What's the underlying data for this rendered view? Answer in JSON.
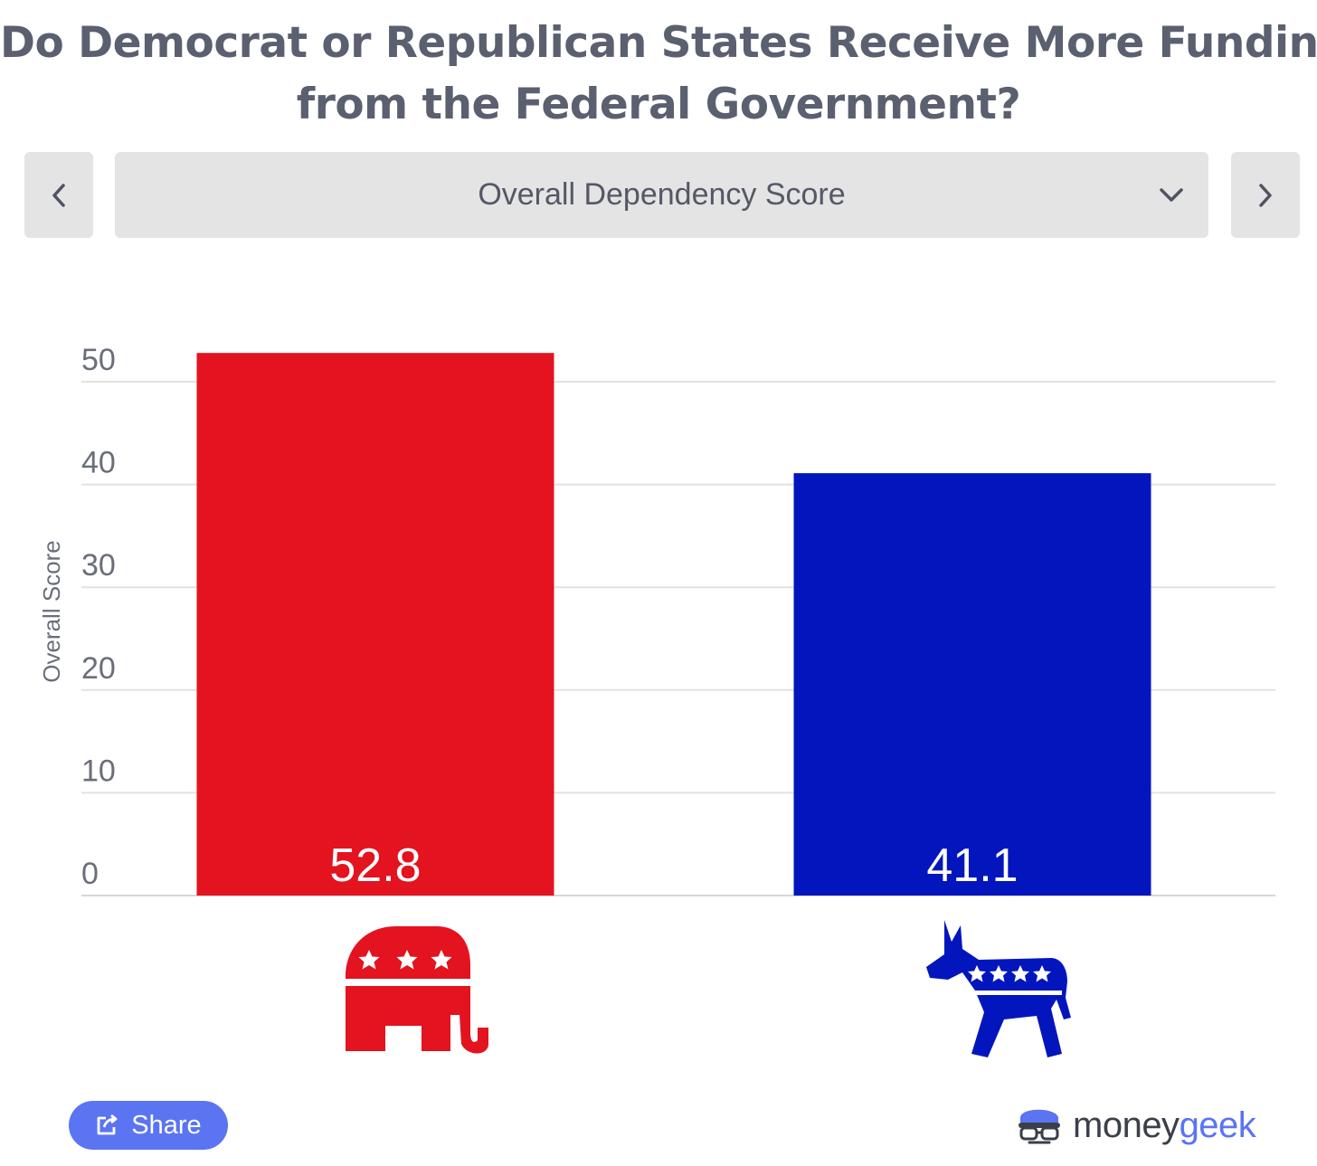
{
  "title": {
    "line1": "Do Democrat or Republican States Receive More Funding",
    "line2": "from the Federal Government?"
  },
  "selector": {
    "current": "Overall Dependency Score",
    "prev_icon": "chevron-left-icon",
    "next_icon": "chevron-right-icon",
    "dropdown_icon": "chevron-down-icon"
  },
  "chart_data": {
    "type": "bar",
    "title": "Overall Dependency Score",
    "xlabel": "",
    "ylabel": "Overall Score",
    "ylim": [
      0,
      50
    ],
    "yticks": [
      0,
      10,
      20,
      30,
      40,
      50
    ],
    "grid": true,
    "categories": [
      "Republican",
      "Democrat"
    ],
    "values": [
      52.8,
      41.1
    ],
    "value_labels": [
      "52.8",
      "41.1"
    ],
    "category_icons": [
      "republican-elephant-icon",
      "democrat-donkey-icon"
    ],
    "colors": [
      "#e3131f",
      "#0316bd"
    ]
  },
  "footer": {
    "share_label": "Share",
    "brand_part1": "money",
    "brand_part2": "geek"
  },
  "colors": {
    "republican": "#e3131f",
    "democrat": "#0316bd",
    "accent": "#5b74f2",
    "title": "#5b6070",
    "button_bg": "#e4e4e4",
    "grid": "#e2e2e2",
    "axis_text": "#6a6e7a"
  }
}
